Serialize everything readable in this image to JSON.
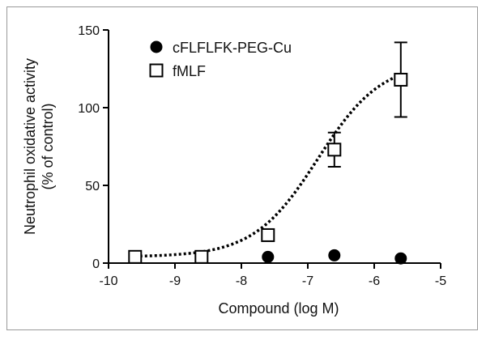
{
  "chart_data": {
    "type": "scatter",
    "title": "",
    "xlabel": "Compound (log M)",
    "ylabel": [
      "Neutrophil oxidative activity",
      "(% of control)"
    ],
    "xlim": [
      -10,
      -5
    ],
    "ylim": [
      0,
      150
    ],
    "x_ticks": [
      -10,
      -9,
      -8,
      -7,
      -6,
      -5
    ],
    "y_ticks": [
      0,
      50,
      100,
      150
    ],
    "grid": false,
    "legend_position": "top-left",
    "series": [
      {
        "name": "cFLFLFK-PEG-Cu",
        "marker": "filled-circle",
        "color": "#000000",
        "x": [
          -9.6,
          -8.6,
          -7.6,
          -6.6,
          -5.6
        ],
        "y": [
          4,
          4,
          4,
          5,
          3
        ]
      },
      {
        "name": "fMLF",
        "marker": "open-square",
        "color": "#000000",
        "x": [
          -9.6,
          -8.6,
          -7.6,
          -6.6,
          -5.6
        ],
        "y": [
          4,
          4,
          18,
          73,
          118
        ],
        "error": [
          0,
          0,
          0,
          11,
          24
        ],
        "fit": "dotted sigmoid"
      }
    ]
  }
}
